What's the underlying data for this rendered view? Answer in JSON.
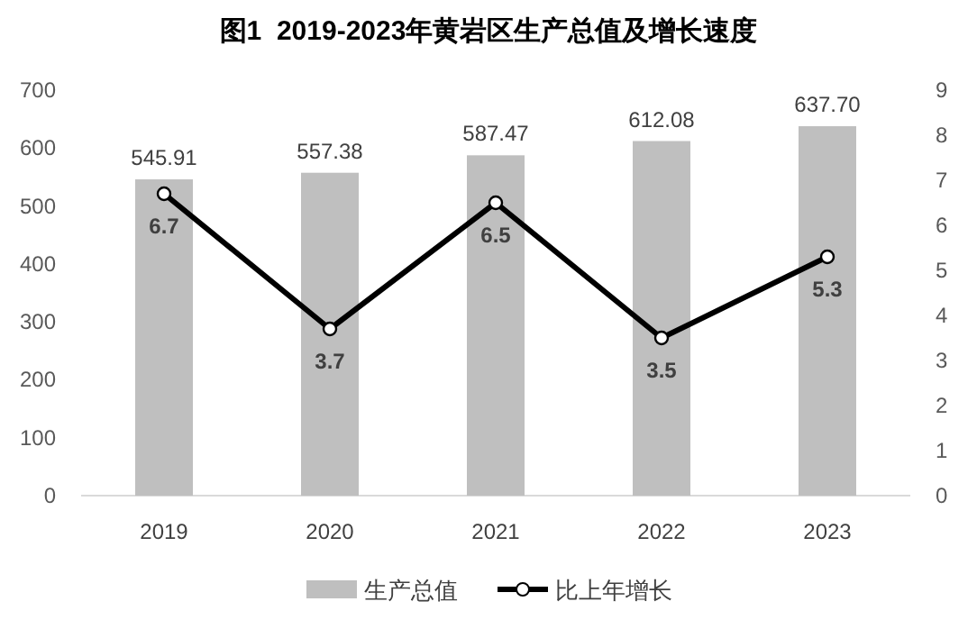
{
  "chart_data": {
    "type": "bar",
    "title": "图1  2019-2023年黄岩区生产总值及增长速度",
    "categories": [
      "2019",
      "2020",
      "2021",
      "2022",
      "2023"
    ],
    "series": [
      {
        "name": "生产总值",
        "color": "#bfbfbf",
        "values": [
          545.91,
          557.38,
          587.47,
          612.08,
          637.7
        ],
        "value_labels": [
          "545.91",
          "557.38",
          "587.47",
          "612.08",
          "637.70"
        ]
      },
      {
        "name": "比上年增长",
        "type": "line",
        "axis": "y2",
        "color": "#000000",
        "marker": "circle",
        "values": [
          6.7,
          3.7,
          6.5,
          3.5,
          5.3
        ],
        "value_labels": [
          "6.7",
          "3.7",
          "6.5",
          "3.5",
          "5.3"
        ]
      }
    ],
    "ylim": [
      0,
      700
    ],
    "yticks": [
      0,
      100,
      200,
      300,
      400,
      500,
      600,
      700
    ],
    "y2lim": [
      0,
      9
    ],
    "y2ticks": [
      0,
      1,
      2,
      3,
      4,
      5,
      6,
      7,
      8,
      9
    ],
    "grid": false,
    "legend": "bottom"
  }
}
